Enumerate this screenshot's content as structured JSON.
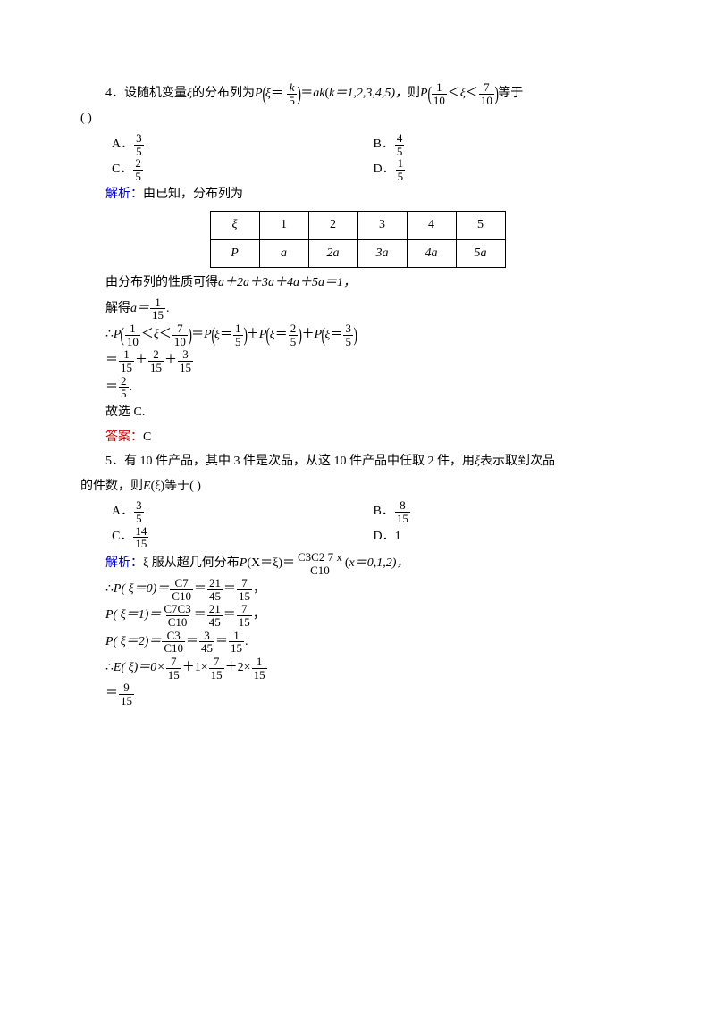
{
  "q4": {
    "num": "4．",
    "stem_a": "设随机变量 ",
    "xi": "ξ",
    "stem_b": " 的分布列为 ",
    "P": "P",
    "eq": "ξ＝",
    "k": "k",
    "over5": "5",
    "stem_c": "＝",
    "ak": "ak",
    "stem_d": "(",
    "kvals": "k＝1,2,3,4,5)，",
    "stem_e": "则 ",
    "one": "1",
    "ten": "10",
    "lt": " ＜ ",
    "seven": "7",
    "stem_f": "等于",
    "blank": "(        )",
    "A_lab": "A．",
    "A_num": "3",
    "A_den": "5",
    "B_lab": "B．",
    "B_num": "4",
    "B_den": "5",
    "C_lab": "C．",
    "C_num": "2",
    "C_den": "5",
    "D_lab": "D．",
    "D_num": "1",
    "D_den": "5",
    "jiexi": "解析：",
    "jiexi_txt": "由已知，分布列为",
    "table": {
      "r1": [
        "ξ",
        "1",
        "2",
        "3",
        "4",
        "5"
      ],
      "r2": [
        "P",
        "a",
        "2a",
        "3a",
        "4a",
        "5a"
      ]
    },
    "line1": "由分布列的性质可得 ",
    "line1b": "a＋2a＋3a＋4a＋5a＝1，",
    "line2a": "解得 ",
    "line2b": "a＝",
    "a_num": "1",
    "a_den": "15",
    "dot": ".",
    "therefore": "∴",
    "eq2": "＝",
    "plus": "＋",
    "p1_num": "1",
    "p1_den": "5",
    "p2_num": "2",
    "p2_den": "5",
    "p3_num": "3",
    "p3_den": "5",
    "s1_num": "1",
    "s1_den": "15",
    "s2_num": "2",
    "s2_den": "15",
    "s3_num": "3",
    "s3_den": "15",
    "r_num": "2",
    "r_den": "5",
    "gx": "故选 C.",
    "da": "答案：",
    "da_val": "C"
  },
  "q5": {
    "num": "5．",
    "stem": "有 10 件产品，其中 3 件是次品，从这 10 件产品中任取 2 件，用 ",
    "xi": "ξ",
    "stem2": " 表示取到次品",
    "stem3": "的件数，则 ",
    "E": "E",
    "stem4": "(ξ)",
    "stem5": "等于(        )",
    "A_lab": "A．",
    "A_num": "3",
    "A_den": "5",
    "B_lab": "B．",
    "B_num": "8",
    "B_den": "15",
    "C_lab": "C．",
    "C_num": "14",
    "C_den": "15",
    "D_lab": "D．",
    "D_val": "1",
    "jiexi": "解析：",
    "jx1": "ξ 服从超几何分布 ",
    "P": "P",
    "Xeq": "(X＝ξ)",
    "eq": "＝ ",
    "hg_num": "C3C2 7 x",
    "hg_den": "C10",
    "jx2": " (",
    "jx2b": "x＝0,1,2)，",
    "therefore": "∴",
    "P0": "P( ξ＝0)＝",
    "p0a": "C7",
    "p0b": "C10",
    "p0c": "21",
    "p0d": "45",
    "p0e": "7",
    "p0f": "15",
    "P1": "P( ξ＝1)＝",
    "p1a": "C7C3",
    "p1b": "C10",
    "p1c": "21",
    "p1d": "45",
    "p1e": "7",
    "p1f": "15",
    "P2": "P( ξ＝2)＝",
    "p2a": "C3",
    "p2b": "C10",
    "p2c": "3",
    "p2d": "45",
    "p2e": "1",
    "p2f": "15",
    "Eexp": "E( ξ)＝0×",
    "e1": "7",
    "e1d": "15",
    "plus": "＋1×",
    "e2": "7",
    "e2d": "15",
    "plus2": "＋2×",
    "e3": "1",
    "e3d": "15",
    "res_eq": "＝",
    "res_n": "9",
    "res_d": "15",
    "comma": "，",
    "dot": "."
  }
}
